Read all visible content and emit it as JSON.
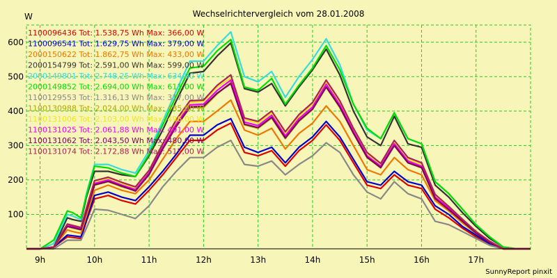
{
  "colors": {
    "background": "#f8f5b8",
    "grid": "#22cc22",
    "axis": "#000000"
  },
  "chart_data": {
    "type": "line",
    "title": "Wechselrichtervergleich vom 28.01.2008",
    "ylabel": "W",
    "xlabel": "",
    "footer": "SunnyReport pinxit",
    "ylim": [
      0,
      650
    ],
    "yticks": [
      100,
      200,
      300,
      400,
      500,
      600
    ],
    "xlim": [
      8.75,
      18.0
    ],
    "xticks": [
      9,
      10,
      11,
      12,
      13,
      14,
      15,
      16,
      17
    ],
    "xtick_labels": [
      "9h",
      "10h",
      "11h",
      "12h",
      "13h",
      "14h",
      "15h",
      "16h",
      "17h"
    ],
    "grid": true,
    "legend_position": "top-left",
    "x": [
      8.75,
      9.0,
      9.25,
      9.5,
      9.6,
      9.75,
      9.85,
      10.0,
      10.25,
      10.5,
      10.75,
      11.0,
      11.25,
      11.5,
      11.75,
      12.0,
      12.25,
      12.5,
      12.75,
      13.0,
      13.25,
      13.5,
      13.75,
      14.0,
      14.25,
      14.5,
      14.75,
      15.0,
      15.25,
      15.5,
      15.75,
      16.0,
      16.25,
      16.5,
      16.75,
      17.0,
      17.25,
      17.5,
      17.75,
      18.0
    ],
    "series": [
      {
        "name": "1100096436 Tot: 1.538,75 Wh Max: 366,00 W",
        "color": "#dd0000",
        "values": [
          0,
          0,
          5,
          35,
          33,
          30,
          80,
          145,
          155,
          140,
          130,
          170,
          215,
          265,
          315,
          315,
          345,
          365,
          280,
          270,
          285,
          240,
          285,
          315,
          360,
          315,
          250,
          185,
          175,
          215,
          185,
          175,
          115,
          90,
          60,
          35,
          15,
          0,
          0,
          0
        ]
      },
      {
        "name": "1100096541 Tot: 1.629,75 Wh Max: 379,00 W",
        "color": "#0000cc",
        "values": [
          0,
          0,
          5,
          40,
          38,
          35,
          85,
          155,
          165,
          150,
          140,
          180,
          225,
          275,
          330,
          330,
          360,
          378,
          295,
          280,
          295,
          250,
          295,
          325,
          370,
          325,
          260,
          195,
          185,
          225,
          195,
          185,
          125,
          100,
          65,
          40,
          15,
          0,
          0,
          0
        ]
      },
      {
        "name": "2000150622 Tot: 1.862,75 Wh Max: 433,00 W",
        "color": "#ee7700",
        "values": [
          0,
          0,
          5,
          55,
          50,
          45,
          95,
          170,
          185,
          170,
          160,
          200,
          260,
          320,
          370,
          370,
          400,
          432,
          345,
          330,
          350,
          290,
          335,
          365,
          415,
          370,
          300,
          230,
          215,
          265,
          230,
          215,
          140,
          110,
          75,
          45,
          20,
          0,
          0,
          0
        ]
      },
      {
        "name": "2000154799 Tot: 2.591,00 Wh Max: 599,00 W",
        "color": "#333333",
        "values": [
          0,
          0,
          5,
          90,
          85,
          80,
          150,
          225,
          225,
          215,
          210,
          270,
          345,
          430,
          510,
          515,
          560,
          598,
          465,
          455,
          480,
          415,
          470,
          520,
          580,
          505,
          400,
          325,
          300,
          385,
          305,
          295,
          185,
          150,
          105,
          65,
          30,
          5,
          0,
          0
        ]
      },
      {
        "name": "2000149801 Tot: 2.748,25 Wh Max: 634,00 W",
        "color": "#33dddd",
        "values": [
          0,
          0,
          15,
          100,
          95,
          85,
          160,
          245,
          245,
          230,
          220,
          285,
          370,
          460,
          545,
          545,
          590,
          630,
          500,
          485,
          515,
          440,
          500,
          550,
          610,
          535,
          420,
          345,
          320,
          395,
          320,
          305,
          195,
          160,
          115,
          70,
          35,
          5,
          0,
          0
        ]
      },
      {
        "name": "2000149852 Tot: 2.694,00 Wh Max: 611,00 W",
        "color": "#00dd00",
        "values": [
          0,
          0,
          25,
          110,
          105,
          90,
          155,
          240,
          235,
          220,
          210,
          275,
          360,
          445,
          525,
          530,
          575,
          608,
          470,
          460,
          495,
          420,
          475,
          525,
          590,
          520,
          420,
          350,
          320,
          395,
          320,
          305,
          195,
          160,
          115,
          70,
          35,
          5,
          0,
          0
        ]
      },
      {
        "name": "1100129553 Tot: 1.316,13 Wh Max: 317,00 W",
        "color": "#888888",
        "values": [
          0,
          0,
          0,
          25,
          25,
          25,
          60,
          115,
          112,
          100,
          88,
          125,
          180,
          225,
          265,
          265,
          295,
          315,
          245,
          240,
          255,
          215,
          245,
          270,
          308,
          280,
          215,
          165,
          145,
          195,
          160,
          145,
          80,
          70,
          50,
          30,
          10,
          0,
          0,
          0
        ]
      },
      {
        "name": "1100130988 Tot: 2.024,00 Wh Max: 485,00 W",
        "color": "#aaaa00",
        "values": [
          0,
          0,
          5,
          65,
          60,
          55,
          110,
          185,
          195,
          180,
          170,
          215,
          290,
          355,
          410,
          410,
          450,
          483,
          360,
          350,
          380,
          320,
          370,
          405,
          470,
          410,
          335,
          265,
          235,
          300,
          250,
          235,
          150,
          115,
          80,
          45,
          20,
          0,
          0,
          0
        ]
      },
      {
        "name": "1100131006 Tot: 2.103,00 Wh Max: 496,00 W",
        "color": "#e8e820",
        "values": [
          0,
          0,
          5,
          70,
          65,
          60,
          115,
          195,
          205,
          190,
          175,
          225,
          300,
          370,
          425,
          428,
          470,
          496,
          375,
          365,
          395,
          335,
          385,
          420,
          485,
          425,
          345,
          275,
          245,
          310,
          260,
          245,
          155,
          120,
          85,
          50,
          20,
          0,
          0,
          0
        ]
      },
      {
        "name": "1100131025 Tot: 2.061,88 Wh Max: 491,00 W",
        "color": "#ee00ee",
        "values": [
          0,
          0,
          5,
          70,
          65,
          58,
          112,
          190,
          200,
          185,
          172,
          220,
          295,
          362,
          418,
          420,
          460,
          490,
          368,
          358,
          388,
          328,
          378,
          412,
          478,
          418,
          340,
          270,
          240,
          305,
          255,
          240,
          150,
          118,
          82,
          48,
          20,
          0,
          0,
          0
        ]
      },
      {
        "name": "1100131062 Tot: 2.043,50 Wh Max: 480,00 W",
        "color": "#800060",
        "values": [
          0,
          0,
          5,
          65,
          62,
          56,
          108,
          186,
          196,
          182,
          168,
          216,
          290,
          356,
          412,
          414,
          452,
          480,
          362,
          352,
          382,
          322,
          372,
          406,
          470,
          412,
          336,
          266,
          236,
          300,
          250,
          236,
          146,
          114,
          80,
          46,
          18,
          0,
          0,
          0
        ]
      },
      {
        "name": "1100131074 Tot: 2.172,88 Wh Max: 515,00 W",
        "color": "#aa2255",
        "values": [
          0,
          0,
          5,
          72,
          68,
          62,
          118,
          198,
          208,
          193,
          180,
          228,
          305,
          375,
          430,
          432,
          475,
          505,
          380,
          370,
          400,
          340,
          390,
          425,
          490,
          430,
          350,
          280,
          248,
          315,
          265,
          250,
          158,
          123,
          86,
          50,
          22,
          0,
          0,
          0
        ]
      }
    ]
  }
}
